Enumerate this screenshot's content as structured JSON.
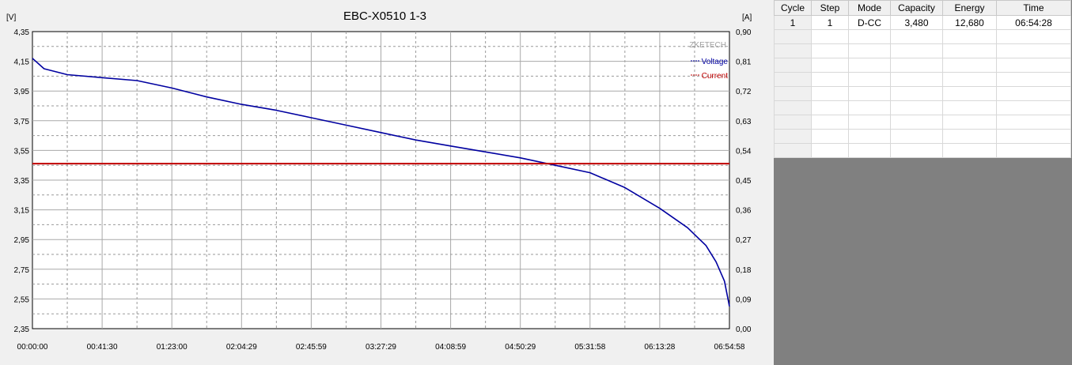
{
  "chart_data": {
    "type": "line",
    "title": "EBC-X0510  1-3",
    "left_unit": "[V]",
    "right_unit": "[A]",
    "watermark": "ZKETECH",
    "y_ticks": [
      "4,35",
      "4,15",
      "3,95",
      "3,75",
      "3,55",
      "3,35",
      "3,15",
      "2,95",
      "2,75",
      "2,55",
      "2,35"
    ],
    "y2_ticks": [
      "0,90",
      "0,81",
      "0,72",
      "0,63",
      "0,54",
      "0,45",
      "0,36",
      "0,27",
      "0,18",
      "0,09",
      "0,00"
    ],
    "x_ticks": [
      "00:00:00",
      "00:41:30",
      "01:23:00",
      "02:04:29",
      "02:45:59",
      "03:27:29",
      "04:08:59",
      "04:50:29",
      "05:31:58",
      "06:13:28",
      "06:54:58"
    ],
    "ylim": [
      2.35,
      4.35
    ],
    "y2lim": [
      0,
      0.9
    ],
    "xlim_seconds": [
      0,
      24898
    ],
    "grid": true,
    "legend_position": "top-right",
    "series": [
      {
        "name": "Voltage",
        "axis": "left",
        "color": "#0000a0",
        "x": [
          "00:00:00",
          "00:06:55",
          "00:20:45",
          "00:41:30",
          "01:02:15",
          "01:23:00",
          "01:43:45",
          "02:04:29",
          "02:25:14",
          "02:45:59",
          "03:06:44",
          "03:27:29",
          "03:48:14",
          "04:08:59",
          "04:29:44",
          "04:50:29",
          "05:11:14",
          "05:31:58",
          "05:52:43",
          "06:13:28",
          "06:30:00",
          "06:41:00",
          "06:47:00",
          "06:52:00",
          "06:54:58"
        ],
        "y": [
          4.17,
          4.1,
          4.06,
          4.04,
          4.02,
          3.97,
          3.91,
          3.86,
          3.82,
          3.77,
          3.72,
          3.67,
          3.62,
          3.58,
          3.54,
          3.5,
          3.45,
          3.4,
          3.3,
          3.16,
          3.03,
          2.91,
          2.8,
          2.67,
          2.5
        ]
      },
      {
        "name": "Current",
        "axis": "right",
        "color": "#c00000",
        "x": [
          "00:00:00",
          "06:54:58"
        ],
        "y": [
          0.5,
          0.5
        ]
      }
    ]
  },
  "table": {
    "columns": [
      "Cycle",
      "Step",
      "Mode",
      "Capacity",
      "Energy",
      "Time"
    ],
    "rows": [
      [
        "1",
        "1",
        "D-CC",
        "3,480",
        "12,680",
        "06:54:28"
      ],
      [
        "",
        "",
        "",
        "",
        "",
        ""
      ],
      [
        "",
        "",
        "",
        "",
        "",
        ""
      ],
      [
        "",
        "",
        "",
        "",
        "",
        ""
      ],
      [
        "",
        "",
        "",
        "",
        "",
        ""
      ],
      [
        "",
        "",
        "",
        "",
        "",
        ""
      ],
      [
        "",
        "",
        "",
        "",
        "",
        ""
      ],
      [
        "",
        "",
        "",
        "",
        "",
        ""
      ],
      [
        "",
        "",
        "",
        "",
        "",
        ""
      ],
      [
        "",
        "",
        "",
        "",
        "",
        ""
      ]
    ]
  }
}
